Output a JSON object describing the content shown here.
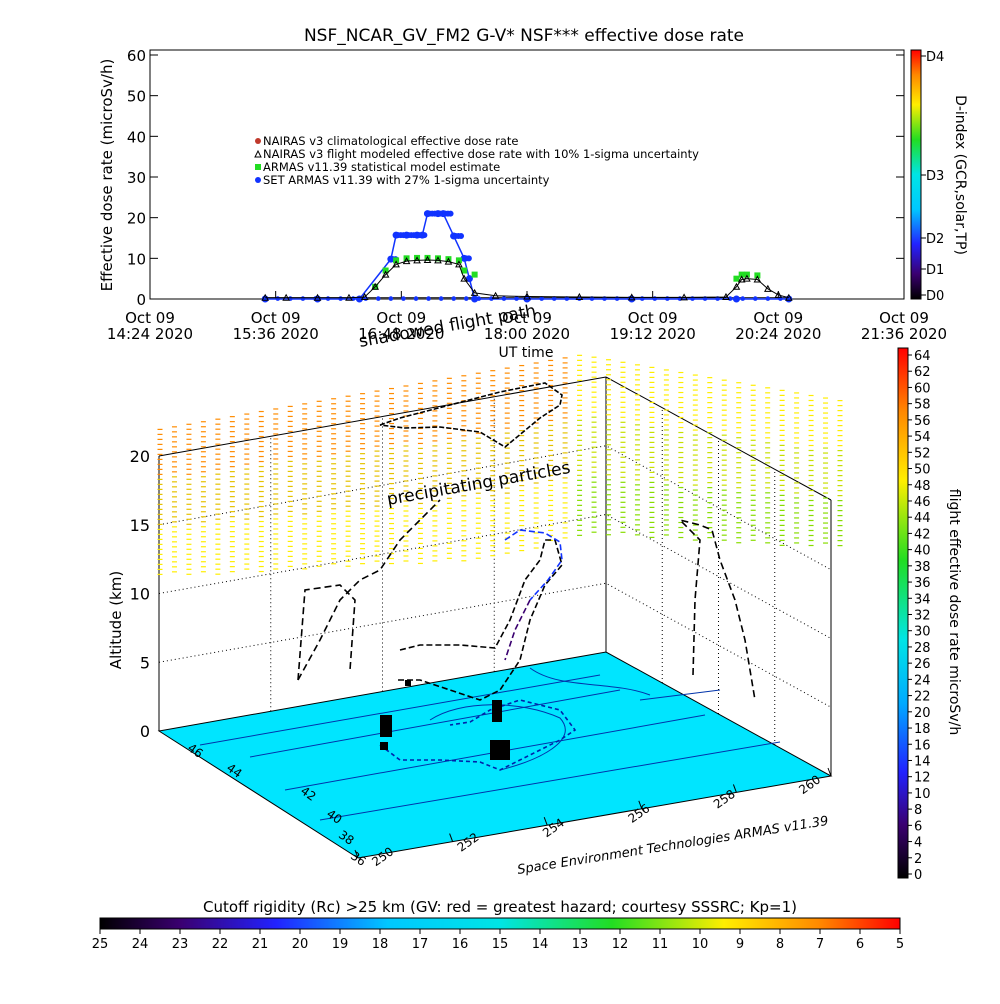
{
  "chart_data": [
    {
      "type": "scatter",
      "title": "NSF_NCAR_GV_FM2 G-V* NSF*** effective dose rate",
      "xlabel": "UT time",
      "ylabel": "Effective dose rate (microSv/h)",
      "ylim": [
        0,
        60
      ],
      "yticks": [
        "0",
        "10",
        "20",
        "30",
        "40",
        "50",
        "60"
      ],
      "xticks": [
        {
          "date": "Oct 09",
          "time": "14:24 2020"
        },
        {
          "date": "Oct 09",
          "time": "15:36 2020"
        },
        {
          "date": "Oct 09",
          "time": "16:48 2020"
        },
        {
          "date": "Oct 09",
          "time": "18:00 2020"
        },
        {
          "date": "Oct 09",
          "time": "19:12 2020"
        },
        {
          "date": "Oct 09",
          "time": "20:24 2020"
        },
        {
          "date": "Oct 09",
          "time": "21:36 2020"
        }
      ],
      "xlim_hours": [
        14.4,
        21.6
      ],
      "legend": [
        {
          "label": "NAIRAS v3 climatological effective dose rate",
          "color": "#c0392b"
        },
        {
          "label": "NAIRAS v3 flight modeled effective dose rate with 10% 1-sigma uncertainty",
          "color": "#000000"
        },
        {
          "label": "ARMAS v11.39 statistical model estimate",
          "color": "#22dd22"
        },
        {
          "label": "SET ARMAS v11.39 with 27% 1-sigma uncertainty",
          "color": "#1133ff"
        }
      ],
      "series": [
        {
          "name": "NAIRAS v3 flight modeled effective dose rate with 10% 1-sigma uncertainty",
          "color": "#000000",
          "x": [
            15.5,
            15.7,
            16.0,
            16.3,
            16.45,
            16.55,
            16.65,
            16.75,
            16.85,
            16.95,
            17.05,
            17.15,
            17.25,
            17.35,
            17.4,
            17.5,
            17.7,
            18.0,
            18.5,
            19.0,
            19.5,
            19.9,
            20.0,
            20.05,
            20.1,
            20.2,
            20.3,
            20.4,
            20.5
          ],
          "y": [
            0.3,
            0.3,
            0.3,
            0.3,
            0.5,
            3,
            6,
            8.5,
            9.3,
            9.5,
            9.6,
            9.5,
            9.2,
            8.5,
            5,
            1.5,
            0.8,
            0.6,
            0.5,
            0.4,
            0.4,
            0.5,
            3,
            4.8,
            5,
            4.8,
            2.5,
            1,
            0.3
          ]
        },
        {
          "name": "ARMAS v11.39 statistical model estimate",
          "color": "#22dd22",
          "x": [
            16.55,
            16.65,
            16.75,
            16.85,
            16.95,
            17.05,
            17.15,
            17.25,
            17.35,
            17.4,
            17.5,
            20.0,
            20.05,
            20.1,
            20.2
          ],
          "y": [
            3,
            7,
            9.5,
            10,
            10.1,
            10.1,
            10,
            9.8,
            9.5,
            7,
            6,
            5,
            6,
            6,
            5.8
          ]
        },
        {
          "name": "SET ARMAS v11.39 with 27% 1-sigma uncertainty",
          "color": "#1133ff",
          "x": [
            15.5,
            16.0,
            16.4,
            16.7,
            16.75,
            16.85,
            16.95,
            17.0,
            17.05,
            17.15,
            17.2,
            17.3,
            17.4,
            17.45,
            17.5,
            18.0,
            19.0,
            20.0,
            20.5
          ],
          "y": [
            0,
            0,
            0,
            9.8,
            15.7,
            15.7,
            15.7,
            15.7,
            21,
            21,
            21,
            15.5,
            10,
            5,
            0,
            0,
            0,
            0,
            0
          ]
        }
      ],
      "right_axis": {
        "label": "D-index (GCR,solar,TP)",
        "ticks": [
          "D0",
          "D1",
          "D2",
          "D3",
          "D4"
        ]
      }
    },
    {
      "type": "3d-track",
      "annotations": [
        "shadowed flight path",
        "precipitating particles",
        "Space Environment Technologies ARMAS v11.39"
      ],
      "zlabel": "Altitude (km)",
      "zlim": [
        0,
        20
      ],
      "zticks": [
        "0",
        "5",
        "10",
        "15",
        "20"
      ],
      "lat_ticks": [
        "36",
        "38",
        "40",
        "42",
        "44",
        "46"
      ],
      "lon_ticks": [
        "250",
        "252",
        "254",
        "256",
        "258",
        "260"
      ],
      "floor_color": "#00e5ff",
      "colorbar": {
        "label": "flight effective dose rate microSv/h",
        "ticks": [
          "0",
          "2",
          "4",
          "6",
          "8",
          "10",
          "12",
          "14",
          "16",
          "18",
          "20",
          "22",
          "24",
          "26",
          "28",
          "30",
          "32",
          "34",
          "36",
          "38",
          "40",
          "42",
          "44",
          "46",
          "48",
          "50",
          "52",
          "54",
          "56",
          "58",
          "60",
          "62",
          "64"
        ]
      }
    },
    {
      "type": "colorbar",
      "title": "Cutoff rigidity (Rc) >25 km (GV: red = greatest hazard; courtesy SSSRC; Kp=1)",
      "ticks": [
        "25",
        "24",
        "23",
        "22",
        "21",
        "20",
        "19",
        "18",
        "17",
        "16",
        "15",
        "14",
        "13",
        "12",
        "11",
        "10",
        "9",
        "8",
        "7",
        "6",
        "5"
      ]
    }
  ]
}
